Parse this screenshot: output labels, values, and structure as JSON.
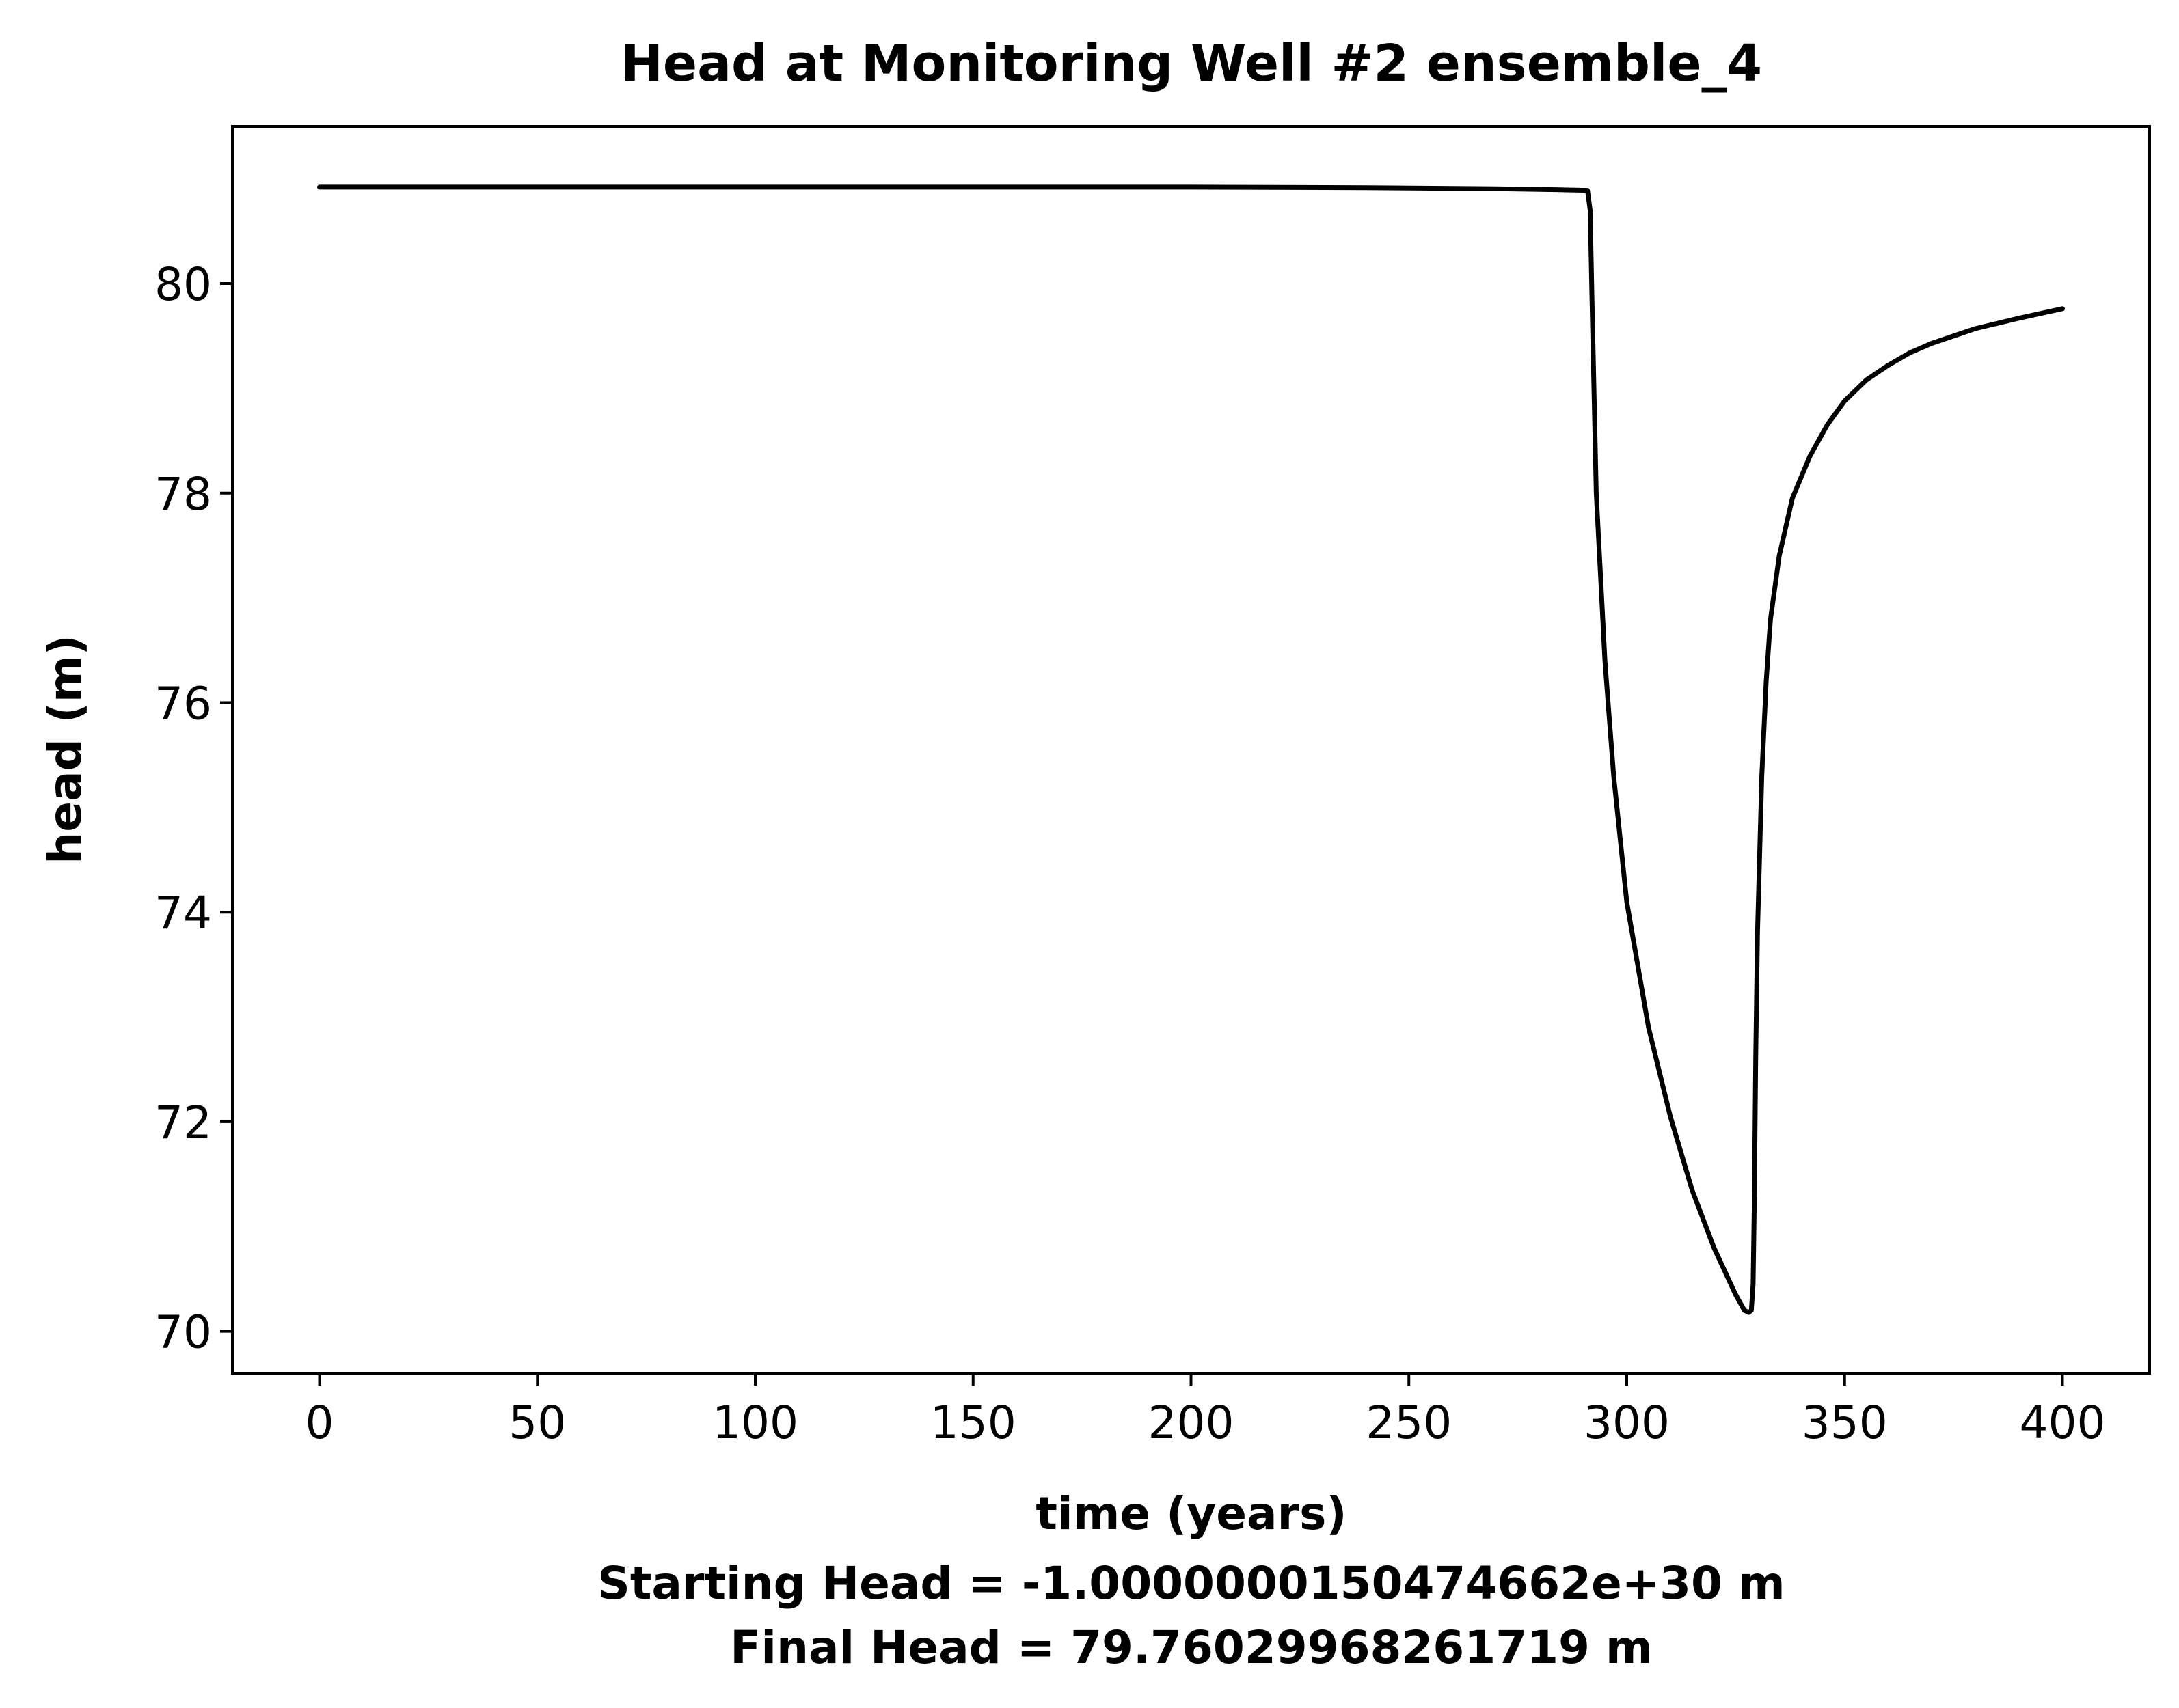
{
  "chart_data": {
    "type": "line",
    "title": "Head at Monitoring Well #2 ensemble_4",
    "xlabel": "time (years)",
    "ylabel": "head (m)",
    "footer_lines": [
      "Starting Head = -1.0000000150474662e+30 m",
      "Final Head = 79.76029968261719 m"
    ],
    "xlim": [
      -20,
      420
    ],
    "ylim": [
      69.6,
      81.5
    ],
    "xticks": [
      0,
      50,
      100,
      150,
      200,
      250,
      300,
      350,
      400
    ],
    "yticks": [
      70,
      72,
      74,
      76,
      78,
      80
    ],
    "grid": false,
    "line_color": "#000000",
    "series": [
      {
        "x": [
          0,
          50,
          100,
          150,
          200,
          240,
          270,
          285,
          291,
          291.6,
          292,
          293,
          295,
          297,
          300,
          305,
          310,
          315,
          320,
          325,
          327,
          328,
          328.6,
          329,
          329.3,
          329.6,
          330,
          331,
          332,
          333,
          335,
          338,
          342,
          346,
          350,
          355,
          360,
          365,
          370,
          380,
          390,
          400
        ],
        "y": [
          80.92,
          80.92,
          80.92,
          80.92,
          80.92,
          80.915,
          80.905,
          80.895,
          80.89,
          80.7,
          79.9,
          78.0,
          76.4,
          75.3,
          74.1,
          72.9,
          72.05,
          71.35,
          70.8,
          70.35,
          70.2,
          70.18,
          70.2,
          70.45,
          71.3,
          72.6,
          73.8,
          75.3,
          76.2,
          76.8,
          77.4,
          77.95,
          78.35,
          78.65,
          78.88,
          79.08,
          79.22,
          79.34,
          79.43,
          79.57,
          79.67,
          79.76
        ]
      }
    ]
  }
}
